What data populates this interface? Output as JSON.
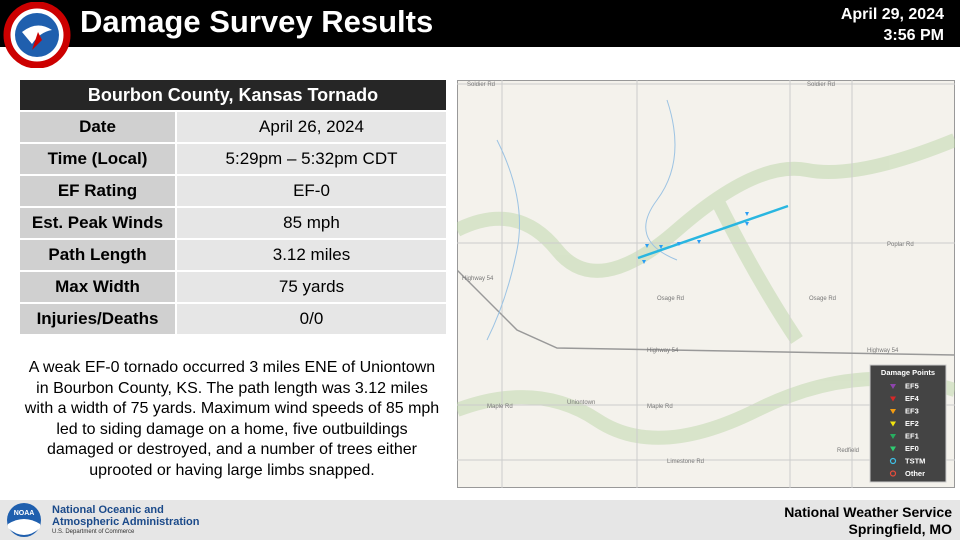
{
  "header": {
    "title": "Damage Survey Results",
    "date": "April 29, 2024",
    "time": "3:56 PM"
  },
  "table": {
    "title": "Bourbon County, Kansas Tornado",
    "rows": [
      [
        "Date",
        "April 26, 2024"
      ],
      [
        "Time (Local)",
        "5:29pm – 5:32pm CDT"
      ],
      [
        "EF Rating",
        "EF-0"
      ],
      [
        "Est. Peak Winds",
        "85 mph"
      ],
      [
        "Path Length",
        "3.12 miles"
      ],
      [
        "Max Width",
        "75 yards"
      ],
      [
        "Injuries/Deaths",
        "0/0"
      ]
    ]
  },
  "summary": "A weak EF-0 tornado occurred 3 miles ENE of Uniontown in Bourbon County, KS. The path length was 3.12 miles with a width of 75 yards. Maximum wind speeds of 85 mph led to siding damage on a home, five outbuildings damaged or destroyed, and a number of trees either uprooted or having large limbs snapped.",
  "map": {
    "labels": [
      "Soldier Rd",
      "Soldier Rd",
      "Poplar Rd",
      "Osage Rd",
      "Osage Rd",
      "Highway 54",
      "Highway 54",
      "Highway 54",
      "Uniontown",
      "Maple Rd",
      "Maple Rd",
      "Limestone Rd",
      "Redfield"
    ],
    "legend": {
      "title": "Damage Points",
      "items": [
        {
          "name": "EF5",
          "color": "#8e44ad",
          "shape": "triangle"
        },
        {
          "name": "EF4",
          "color": "#d62828",
          "shape": "triangle"
        },
        {
          "name": "EF3",
          "color": "#f39c12",
          "shape": "triangle"
        },
        {
          "name": "EF2",
          "color": "#f1e40f",
          "shape": "triangle"
        },
        {
          "name": "EF1",
          "color": "#27ae60",
          "shape": "triangle"
        },
        {
          "name": "EF0",
          "color": "#2ecc71",
          "shape": "triangle"
        },
        {
          "name": "TSTM",
          "color": "#3fc1e8",
          "shape": "circle"
        },
        {
          "name": "Other",
          "color": "#e74c3c",
          "shape": "circle"
        }
      ]
    }
  },
  "footer": {
    "agency": [
      "National Oceanic and",
      "Atmospheric Administration"
    ],
    "department": "U.S. Department of Commerce",
    "logo": "NOAA",
    "office": [
      "National Weather Service",
      "Springfield, MO"
    ]
  }
}
